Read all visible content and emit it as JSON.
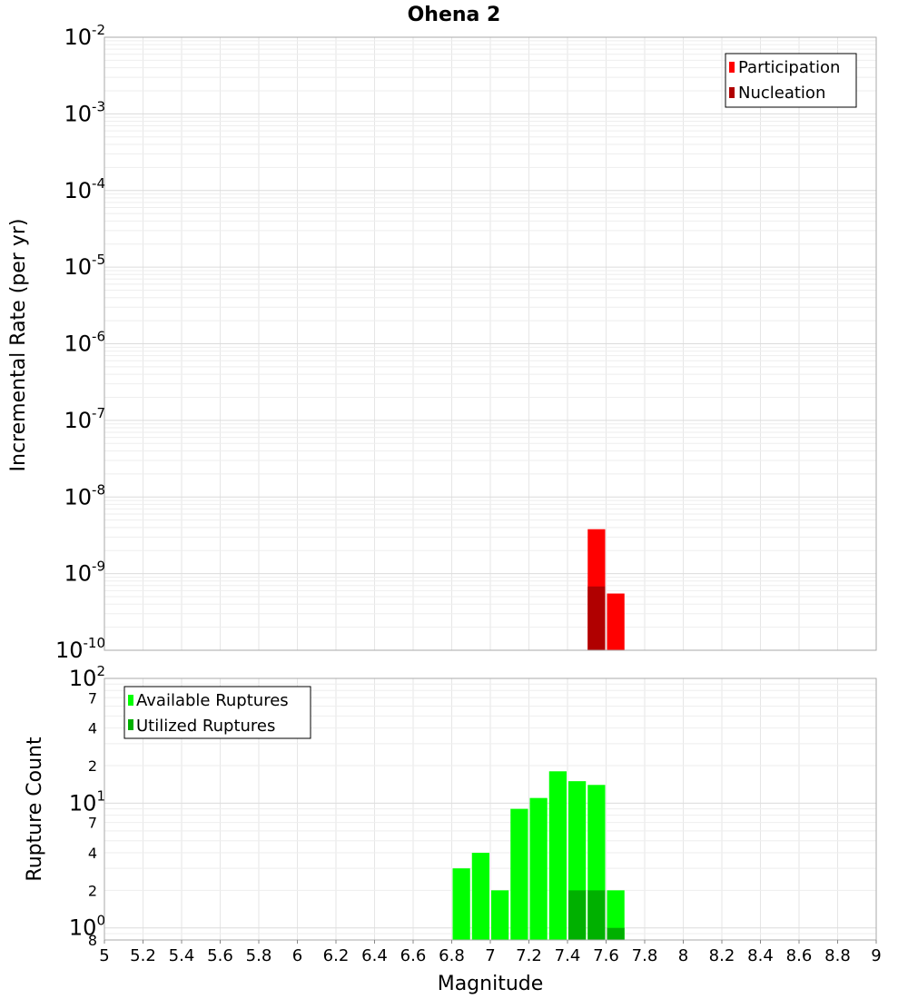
{
  "chart_data": [
    {
      "type": "bar",
      "title": "Ohena 2",
      "ylabel": "Incremental Rate (per yr)",
      "xlabel": "",
      "x_axis": {
        "range": [
          5,
          9
        ]
      },
      "y_axis": {
        "scale": "log",
        "range": [
          1e-10,
          0.01
        ],
        "tick_exponents": [
          "-10",
          "-9",
          "-8",
          "-7",
          "-6",
          "-5",
          "-4",
          "-3",
          "-2"
        ]
      },
      "grid": true,
      "legend_position": "top-right",
      "series": [
        {
          "name": "Participation",
          "color": "#ff0000",
          "bars": [
            {
              "x": 7.55,
              "y": 3.8e-09
            },
            {
              "x": 7.65,
              "y": 5.5e-10
            }
          ]
        },
        {
          "name": "Nucleation",
          "color": "#b00000",
          "bars": [
            {
              "x": 7.55,
              "y": 6.8e-10
            }
          ]
        }
      ]
    },
    {
      "type": "bar",
      "title": "",
      "ylabel": "Rupture Count",
      "xlabel": "Magnitude",
      "x_axis": {
        "range": [
          5,
          9
        ],
        "tick_labels": [
          "5",
          "5.2",
          "5.4",
          "5.6",
          "5.8",
          "6",
          "6.2",
          "6.4",
          "6.6",
          "6.8",
          "7",
          "7.2",
          "7.4",
          "7.6",
          "7.8",
          "8",
          "8.2",
          "8.4",
          "8.6",
          "8.8",
          "9"
        ]
      },
      "y_axis": {
        "scale": "log",
        "range": [
          0.8,
          100
        ],
        "major_ticks": [
          {
            "base": "10",
            "exp": "0",
            "value": 1
          },
          {
            "base": "10",
            "exp": "1",
            "value": 10
          },
          {
            "base": "10",
            "exp": "2",
            "value": 100
          }
        ],
        "minor_ticks": [
          {
            "label": "8",
            "value": 0.8
          },
          {
            "label": "2",
            "value": 2
          },
          {
            "label": "4",
            "value": 4
          },
          {
            "label": "7",
            "value": 7
          },
          {
            "label": "2",
            "value": 20
          },
          {
            "label": "4",
            "value": 40
          },
          {
            "label": "7",
            "value": 70
          }
        ]
      },
      "grid": true,
      "legend_position": "top-left",
      "series": [
        {
          "name": "Available Ruptures",
          "color": "#00ff00",
          "bars": [
            {
              "x": 6.85,
              "y": 3
            },
            {
              "x": 6.95,
              "y": 4
            },
            {
              "x": 7.05,
              "y": 2
            },
            {
              "x": 7.15,
              "y": 9
            },
            {
              "x": 7.25,
              "y": 11
            },
            {
              "x": 7.35,
              "y": 18
            },
            {
              "x": 7.45,
              "y": 15
            },
            {
              "x": 7.55,
              "y": 14
            },
            {
              "x": 7.65,
              "y": 2
            }
          ]
        },
        {
          "name": "Utilized Ruptures",
          "color": "#00b000",
          "bars": [
            {
              "x": 7.45,
              "y": 2
            },
            {
              "x": 7.55,
              "y": 2
            },
            {
              "x": 7.65,
              "y": 1
            }
          ]
        }
      ]
    }
  ]
}
